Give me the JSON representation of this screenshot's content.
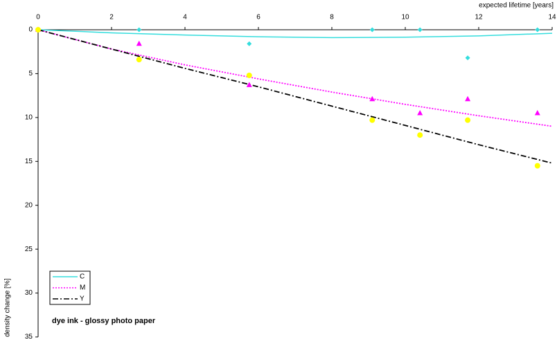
{
  "chart_data": {
    "type": "scatter",
    "x_label": "expected lifetime [years]",
    "y_label": "density change [%]",
    "annotation": "dye ink - glossy photo paper",
    "x": [
      0,
      2.75,
      5.75,
      9.1,
      10.4,
      11.7,
      13.6
    ],
    "trend_x": [
      0,
      2,
      4,
      6,
      8,
      10,
      12,
      14
    ],
    "series": [
      {
        "name": "C",
        "color": "#33dddd",
        "line_color": "#33dddd",
        "marker": "diamond",
        "dash": "solid",
        "values": [
          0,
          0,
          1.6,
          0,
          0,
          3.2,
          0
        ],
        "trend": [
          0,
          0.35,
          0.6,
          0.8,
          0.9,
          0.85,
          0.7,
          0.4
        ]
      },
      {
        "name": "M",
        "color": "#ff00ff",
        "line_color": "#ff00ff",
        "marker": "triangle",
        "dash": "dotted",
        "values": [
          0,
          1.6,
          6.3,
          7.9,
          9.5,
          7.9,
          9.5
        ],
        "trend": [
          0,
          2.2,
          4.0,
          5.6,
          7.1,
          8.5,
          9.8,
          11.0
        ]
      },
      {
        "name": "Y",
        "color": "#ffff00",
        "line_color": "#000000",
        "marker": "circle",
        "dash": "dashdot",
        "values": [
          0,
          3.4,
          5.2,
          10.3,
          12.0,
          10.3,
          15.5
        ],
        "trend": [
          0,
          2.2,
          4.4,
          6.5,
          8.7,
          10.9,
          13.1,
          15.2
        ]
      }
    ],
    "xlim": [
      0,
      14
    ],
    "xticks": [
      0,
      2,
      4,
      6,
      8,
      10,
      12,
      14
    ],
    "ylim": [
      0,
      35
    ],
    "yticks": [
      0,
      5,
      10,
      15,
      20,
      25,
      30,
      35
    ],
    "y_inverted": true,
    "x_axis_position": "top",
    "legend": "bottom-left"
  }
}
